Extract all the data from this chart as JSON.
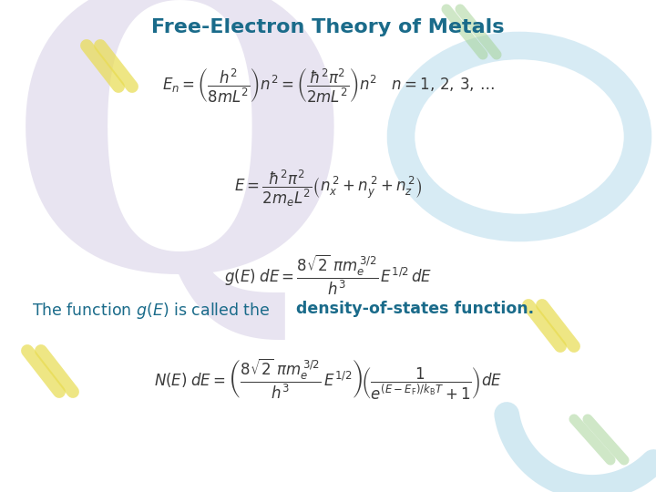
{
  "title": "Free-Electron Theory of Metals",
  "title_color": "#1a6b8a",
  "title_fontsize": 16,
  "text_color": "#1a6b8a",
  "eq_color": "#3a3a3a",
  "bg_color": "#ffffff",
  "fig_width": 7.2,
  "fig_height": 5.4,
  "dpi": 100
}
